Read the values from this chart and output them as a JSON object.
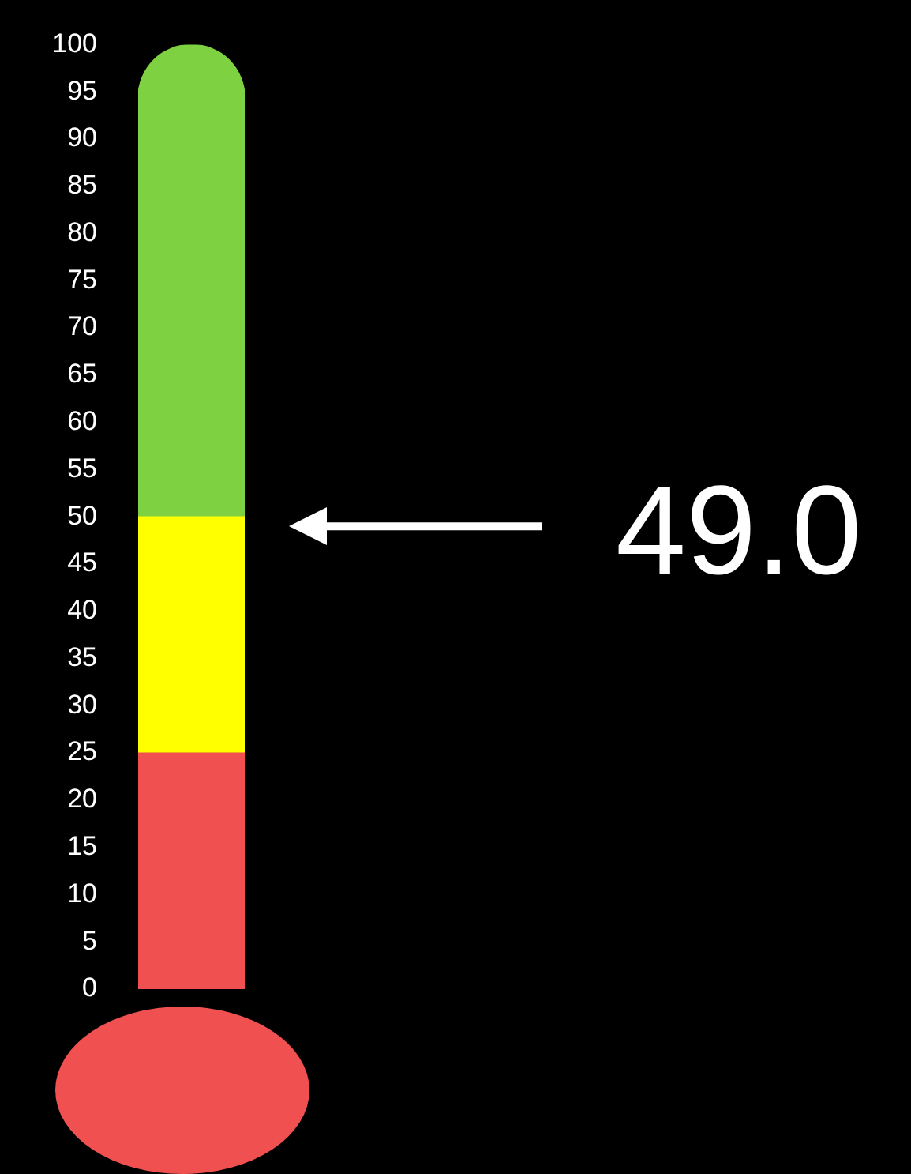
{
  "chart_data": {
    "type": "bar",
    "stacked": true,
    "categories": [
      null
    ],
    "series": [
      {
        "color": "#f05050",
        "values": [
          25
        ]
      },
      {
        "color": "#ffff00",
        "values": [
          25
        ]
      },
      {
        "color": "#7ed140",
        "values": [
          50
        ]
      }
    ],
    "ylim": [
      0,
      100
    ],
    "yticks": [
      0,
      5,
      10,
      15,
      20,
      25,
      30,
      35,
      40,
      45,
      50,
      55,
      60,
      65,
      70,
      75,
      80,
      85,
      90,
      95,
      100
    ],
    "legend": false,
    "ref_lines": [
      {
        "axis": "y",
        "value": 49,
        "label": "49.0",
        "color": "#ffffff"
      }
    ]
  }
}
